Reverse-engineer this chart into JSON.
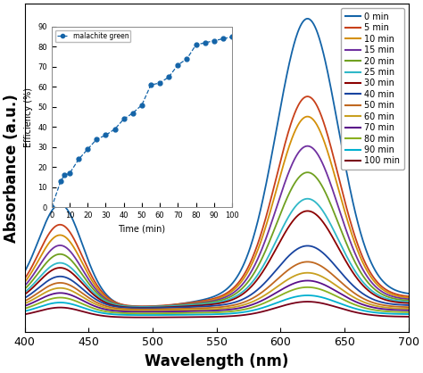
{
  "wavelength_range": [
    400,
    700
  ],
  "time_labels": [
    "0 min",
    "5 min",
    "10 min",
    "15 min",
    "20 min",
    "25 min",
    "30 min",
    "40 min",
    "50 min",
    "60 min",
    "70 min",
    "80 min",
    "90 min",
    "100 min"
  ],
  "times": [
    0,
    5,
    10,
    15,
    20,
    25,
    30,
    40,
    50,
    60,
    70,
    80,
    90,
    100
  ],
  "line_colors": [
    "#1464a8",
    "#c8401a",
    "#d4900a",
    "#7030a0",
    "#70a020",
    "#30b8c8",
    "#8b0000",
    "#1844a0",
    "#c06820",
    "#c8a020",
    "#5a108a",
    "#8ab020",
    "#00b0d0",
    "#780018"
  ],
  "xlabel": "Wavelength (nm)",
  "ylabel": "Absorbance (a.u.)",
  "inset_xlabel": "Time (min)",
  "inset_ylabel": "Efficiency (%)",
  "inset_legend": "malachite green",
  "efficiency_times": [
    0,
    5,
    7,
    10,
    15,
    20,
    25,
    30,
    35,
    40,
    45,
    50,
    55,
    60,
    65,
    70,
    75,
    80,
    85,
    90,
    95,
    100
  ],
  "efficiency_values": [
    0,
    13,
    16,
    17,
    24,
    29,
    34,
    36,
    39,
    44,
    47,
    51,
    61,
    62,
    65,
    71,
    74,
    81,
    82,
    83,
    84,
    85
  ],
  "main_peaks": [
    0.88,
    0.64,
    0.58,
    0.49,
    0.41,
    0.33,
    0.295,
    0.19,
    0.145,
    0.115,
    0.095,
    0.08,
    0.06,
    0.048
  ],
  "sec_peaks": [
    0.3,
    0.24,
    0.21,
    0.18,
    0.155,
    0.13,
    0.118,
    0.095,
    0.08,
    0.068,
    0.057,
    0.048,
    0.038,
    0.03
  ],
  "base_offsets": [
    0.12,
    0.112,
    0.108,
    0.104,
    0.1,
    0.096,
    0.092,
    0.086,
    0.08,
    0.075,
    0.07,
    0.064,
    0.058,
    0.05
  ]
}
